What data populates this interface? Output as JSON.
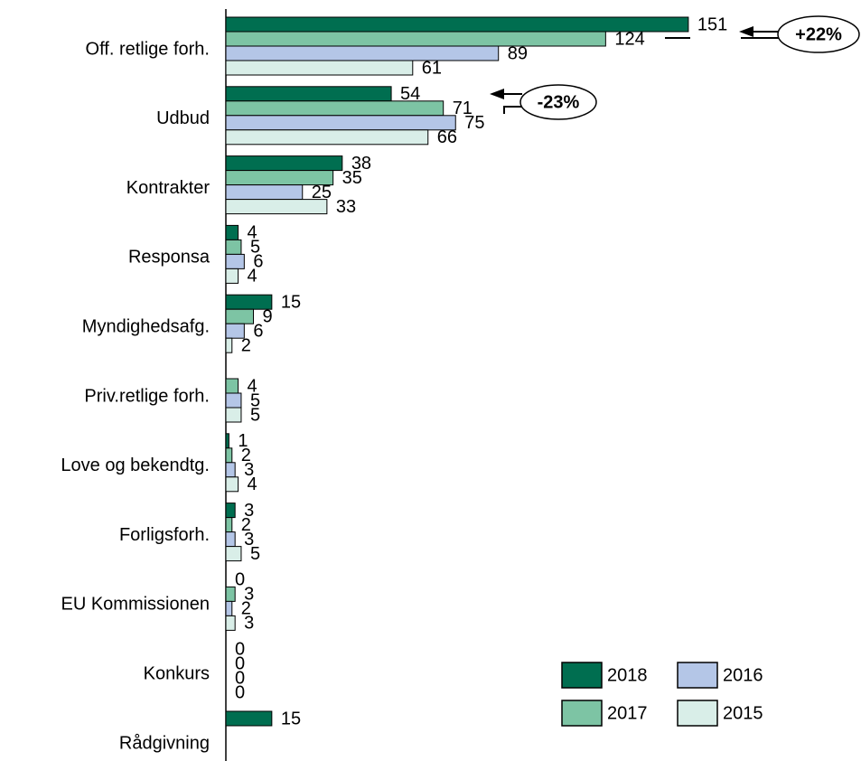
{
  "chart_data": {
    "type": "bar",
    "orientation": "horizontal",
    "categories": [
      "Off. retlige forh.",
      "Udbud",
      "Kontrakter",
      "Responsa",
      "Myndighedsafg.",
      "Priv.retlige forh.",
      "Love og bekendtg.",
      "Forligsforh.",
      "EU Kommissionen",
      "Konkurs",
      "Rådgivning"
    ],
    "series": [
      {
        "name": "2018",
        "color": "#006e50",
        "values": [
          151,
          54,
          38,
          4,
          15,
          null,
          1,
          3,
          0,
          0,
          15
        ]
      },
      {
        "name": "2017",
        "color": "#7dc4a4",
        "values": [
          124,
          71,
          35,
          5,
          9,
          4,
          2,
          2,
          3,
          0,
          null
        ]
      },
      {
        "name": "2016",
        "color": "#b4c6e7",
        "values": [
          89,
          75,
          25,
          6,
          6,
          5,
          3,
          3,
          2,
          0,
          null
        ]
      },
      {
        "name": "2015",
        "color": "#d9eee8",
        "values": [
          61,
          66,
          33,
          4,
          2,
          5,
          4,
          5,
          3,
          0,
          null
        ]
      }
    ],
    "annotations": [
      "+22%",
      "-23%"
    ],
    "legend": "lower right"
  }
}
